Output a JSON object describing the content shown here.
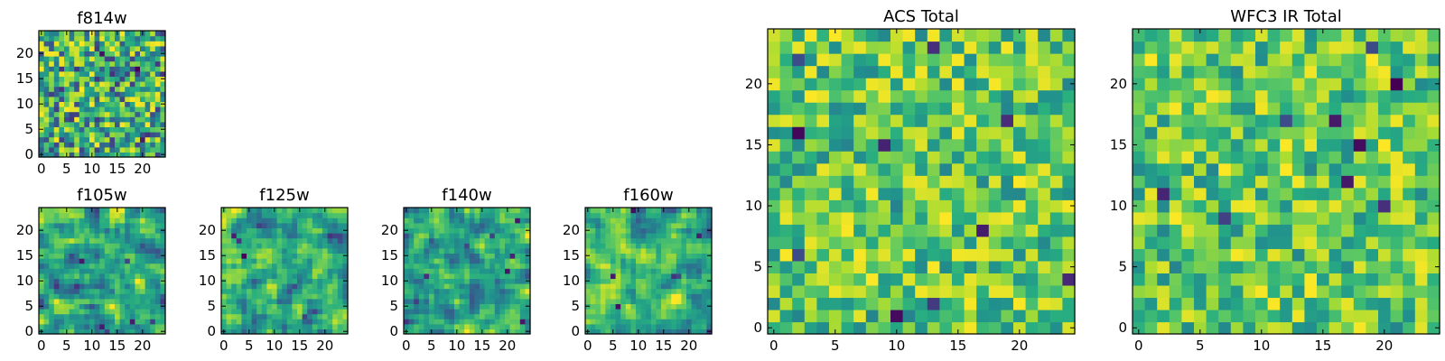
{
  "chart_data": [
    {
      "type": "heatmap",
      "title": "f814w",
      "colormap": "viridis",
      "grid_size": 25,
      "seed": 11,
      "smooth": 0,
      "xlim": [
        0,
        24
      ],
      "ylim": [
        0,
        24
      ],
      "x_ticks": [
        0,
        5,
        10,
        15,
        20
      ],
      "y_ticks": [
        0,
        5,
        10,
        15,
        20
      ],
      "value_range": [
        0,
        1
      ],
      "dark_cells": 8
    },
    {
      "type": "heatmap",
      "title": "f105w",
      "colormap": "viridis",
      "grid_size": 25,
      "seed": 23,
      "smooth": 1,
      "xlim": [
        0,
        24
      ],
      "ylim": [
        0,
        24
      ],
      "x_ticks": [
        0,
        5,
        10,
        15,
        20
      ],
      "y_ticks": [
        0,
        5,
        10,
        15,
        20
      ],
      "value_range": [
        0,
        1
      ],
      "dark_cells": 6
    },
    {
      "type": "heatmap",
      "title": "f125w",
      "colormap": "viridis",
      "grid_size": 25,
      "seed": 37,
      "smooth": 1,
      "xlim": [
        0,
        24
      ],
      "ylim": [
        0,
        24
      ],
      "x_ticks": [
        0,
        5,
        10,
        15,
        20
      ],
      "y_ticks": [
        0,
        5,
        10,
        15,
        20
      ],
      "value_range": [
        0,
        1
      ],
      "dark_cells": 5
    },
    {
      "type": "heatmap",
      "title": "f140w",
      "colormap": "viridis",
      "grid_size": 25,
      "seed": 41,
      "smooth": 1,
      "xlim": [
        0,
        24
      ],
      "ylim": [
        0,
        24
      ],
      "x_ticks": [
        0,
        5,
        10,
        15,
        20
      ],
      "y_ticks": [
        0,
        5,
        10,
        15,
        20
      ],
      "value_range": [
        0,
        1
      ],
      "dark_cells": 7
    },
    {
      "type": "heatmap",
      "title": "f160w",
      "colormap": "viridis",
      "grid_size": 25,
      "seed": 53,
      "smooth": 1,
      "xlim": [
        0,
        24
      ],
      "ylim": [
        0,
        24
      ],
      "x_ticks": [
        0,
        5,
        10,
        15,
        20
      ],
      "y_ticks": [
        0,
        5,
        10,
        15,
        20
      ],
      "value_range": [
        0,
        1
      ],
      "dark_cells": 6
    },
    {
      "type": "heatmap",
      "title": "ACS Total",
      "colormap": "viridis",
      "grid_size": 25,
      "seed": 67,
      "smooth": 0,
      "xlim": [
        0,
        24
      ],
      "ylim": [
        0,
        24
      ],
      "x_ticks": [
        0,
        5,
        10,
        15,
        20
      ],
      "y_ticks": [
        0,
        5,
        10,
        15,
        20
      ],
      "value_range": [
        0.35,
        1
      ],
      "dark_cells": 10
    },
    {
      "type": "heatmap",
      "title": "WFC3 IR Total",
      "colormap": "viridis",
      "grid_size": 25,
      "seed": 79,
      "smooth": 0,
      "xlim": [
        0,
        24
      ],
      "ylim": [
        0,
        24
      ],
      "x_ticks": [
        0,
        5,
        10,
        15,
        20
      ],
      "y_ticks": [
        0,
        5,
        10,
        15,
        20
      ],
      "value_range": [
        0.35,
        1
      ],
      "dark_cells": 9
    }
  ],
  "colors": {
    "viridis": [
      "#440154",
      "#472c7a",
      "#3b518b",
      "#2c718e",
      "#21908d",
      "#27ad81",
      "#5cc863",
      "#aadc32",
      "#fde725"
    ],
    "axis": "#000000",
    "background": "#ffffff"
  }
}
